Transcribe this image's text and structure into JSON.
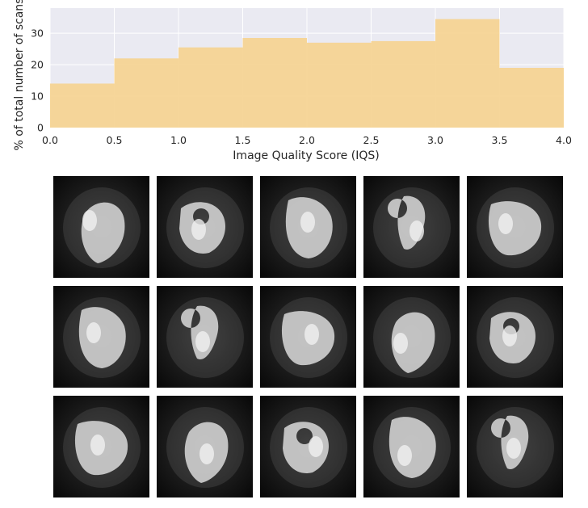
{
  "chart_data": {
    "type": "bar",
    "bins": [
      [
        0.0,
        0.5
      ],
      [
        0.5,
        1.0
      ],
      [
        1.0,
        1.5
      ],
      [
        1.5,
        2.0
      ],
      [
        2.0,
        2.5
      ],
      [
        2.5,
        3.0
      ],
      [
        3.0,
        3.5
      ],
      [
        3.5,
        4.0
      ]
    ],
    "values": [
      14,
      22,
      25.5,
      28.5,
      27,
      27.5,
      34.5,
      19
    ],
    "xlabel": "Image Quality Score (IQS)",
    "ylabel": "% of total number of scans",
    "xlim": [
      0.0,
      4.0
    ],
    "ylim": [
      0,
      38
    ],
    "xticks": [
      "0.0",
      "0.5",
      "1.0",
      "1.5",
      "2.0",
      "2.5",
      "3.0",
      "3.5",
      "4.0"
    ],
    "yticks": [
      "0",
      "10",
      "20",
      "30"
    ],
    "grid": true,
    "colors": {
      "bar": "#f5d291",
      "background": "#eaeaf2",
      "grid": "#ffffff"
    }
  },
  "image_grid": {
    "rows": 3,
    "columns": 5,
    "content": "cardiac-mri-slice"
  }
}
